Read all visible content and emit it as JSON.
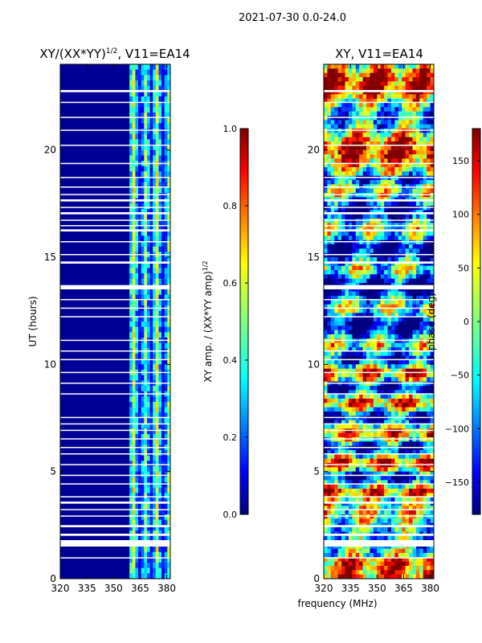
{
  "suptitle": "2021-07-30 0.0-24.0",
  "shared_xlabel": "frequency (MHz)",
  "colors": {
    "jet_stops": [
      "#00007f",
      "#0000ff",
      "#007fff",
      "#00ffff",
      "#7fff7f",
      "#ffff00",
      "#ff7f00",
      "#ff0000",
      "#7f0000"
    ]
  },
  "chart_data": [
    {
      "type": "heatmap",
      "name": "amplitude",
      "title": "XY/(XX*YY)",
      "title_sup": "1/2",
      "title_tail": ", V11=EA14",
      "xlabel": "",
      "ylabel": "UT (hours)",
      "xlim": [
        320,
        382
      ],
      "ylim": [
        0,
        24
      ],
      "xticks": [
        320,
        335,
        350,
        365,
        380
      ],
      "yticks": [
        0,
        5,
        10,
        15,
        20
      ],
      "colorbar": {
        "label": "XY amp. / (XX*YY amp)",
        "label_sup": "1/2",
        "range": [
          0.0,
          1.0
        ],
        "ticks": [
          0.0,
          0.2,
          0.4,
          0.6,
          0.8,
          1.0
        ],
        "tick_labels": [
          "0.0",
          "0.2",
          "0.4",
          "0.6",
          "0.8",
          "1.0"
        ]
      },
      "description_values": {
        "background_value": 0.02,
        "band_start_mhz": 359,
        "band_values": [
          0.35,
          0.55,
          0.3,
          0.5,
          0.25,
          0.45,
          0.3,
          0.5
        ]
      }
    },
    {
      "type": "heatmap",
      "name": "phase",
      "title": "XY, V11=EA14",
      "xlabel": "frequency (MHz)",
      "ylabel": "",
      "xlim": [
        320,
        382
      ],
      "ylim": [
        0,
        24
      ],
      "xticks": [
        320,
        335,
        350,
        365,
        380
      ],
      "yticks": [
        0,
        5,
        10,
        15,
        20
      ],
      "colorbar": {
        "label": "phase (deg)",
        "range": [
          -180,
          180
        ],
        "ticks": [
          -150,
          -100,
          -50,
          0,
          50,
          100,
          150
        ],
        "tick_labels": [
          "−150",
          "−100",
          "−50",
          "0",
          "50",
          "100",
          "150"
        ]
      }
    }
  ],
  "gap_hours": [
    [
      18.7,
      18.75
    ],
    [
      18.25,
      18.3
    ],
    [
      17.9,
      17.95
    ],
    [
      17.6,
      17.7
    ],
    [
      17.3,
      17.35
    ],
    [
      17.0,
      17.1
    ],
    [
      16.7,
      16.75
    ],
    [
      16.45,
      16.5
    ],
    [
      16.2,
      16.3
    ],
    [
      15.7,
      15.75
    ],
    [
      15.1,
      15.15
    ],
    [
      14.7,
      14.8
    ],
    [
      13.5,
      13.7
    ],
    [
      13.0,
      13.05
    ],
    [
      12.6,
      12.65
    ],
    [
      12.2,
      12.25
    ],
    [
      11.1,
      11.15
    ],
    [
      10.6,
      10.65
    ],
    [
      10.2,
      10.25
    ],
    [
      9.6,
      9.65
    ],
    [
      9.1,
      9.15
    ],
    [
      8.6,
      8.65
    ],
    [
      7.5,
      7.55
    ],
    [
      7.2,
      7.25
    ],
    [
      6.9,
      6.95
    ],
    [
      6.5,
      6.55
    ],
    [
      6.1,
      6.15
    ],
    [
      5.8,
      5.85
    ],
    [
      5.3,
      5.35
    ],
    [
      4.8,
      4.85
    ],
    [
      4.4,
      4.45
    ],
    [
      3.8,
      3.85
    ],
    [
      3.5,
      3.6
    ],
    [
      3.2,
      3.25
    ],
    [
      2.9,
      2.95
    ],
    [
      2.4,
      2.5
    ],
    [
      2.0,
      2.1
    ],
    [
      1.5,
      1.8
    ],
    [
      0.95,
      1.0
    ],
    [
      22.7,
      22.8
    ],
    [
      22.2,
      22.25
    ],
    [
      21.5,
      21.55
    ],
    [
      20.9,
      20.95
    ],
    [
      20.2,
      20.25
    ],
    [
      19.35,
      19.4
    ]
  ]
}
